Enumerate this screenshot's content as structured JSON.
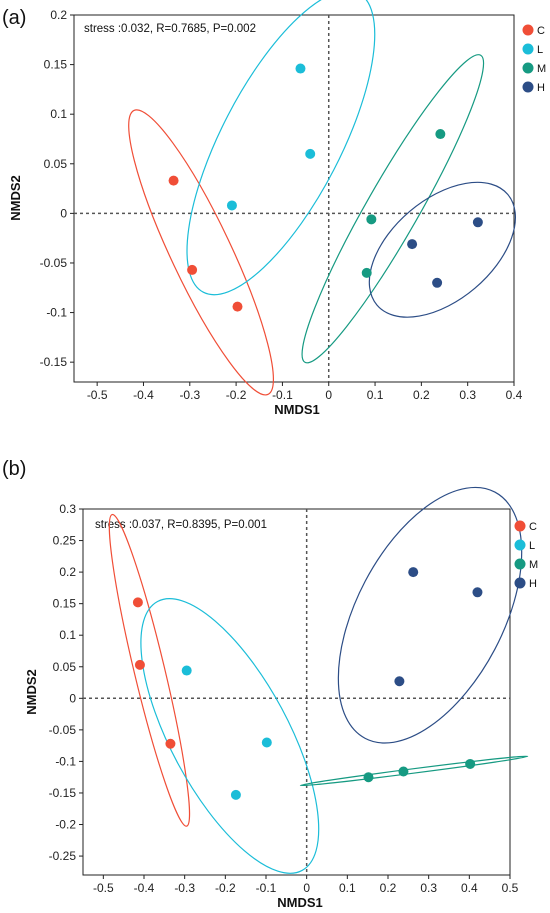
{
  "chart_data": [
    {
      "type": "scatter",
      "panel_label": "(a)",
      "annotation": "stress :0.032, R=0.7685, P=0.002",
      "xlabel": "NMDS1",
      "ylabel": "NMDS2",
      "xlim": [
        -0.55,
        0.4
      ],
      "ylim": [
        -0.17,
        0.2
      ],
      "xticks": [
        -0.5,
        -0.4,
        -0.3,
        -0.2,
        -0.1,
        0,
        0.1,
        0.2,
        0.3,
        0.4
      ],
      "yticks": [
        -0.15,
        -0.1,
        -0.05,
        0,
        0.05,
        0.1,
        0.15,
        0.2
      ],
      "xtick_labels": [
        "-0.5",
        "-0.4",
        "-0.3",
        "-0.2",
        "-0.1",
        "0",
        "0.1",
        "0.2",
        "0.3",
        "0.4"
      ],
      "ytick_labels": [
        "-0.15",
        "-0.1",
        "-0.05",
        "0",
        "0.05",
        "0.1",
        "0.15",
        "0.2"
      ],
      "grid": false,
      "reference_lines": "dashed lines at x=0 and y=0",
      "legend_position": "right",
      "series": [
        {
          "name": "C",
          "color": "#f04e37",
          "points": [
            [
              -0.335,
              0.033
            ],
            [
              -0.295,
              -0.057
            ],
            [
              -0.197,
              -0.094
            ]
          ]
        },
        {
          "name": "L",
          "color": "#1bbdd8",
          "points": [
            [
              -0.061,
              0.146
            ],
            [
              -0.04,
              0.06
            ],
            [
              -0.209,
              0.008
            ]
          ]
        },
        {
          "name": "M",
          "color": "#169a82",
          "points": [
            [
              0.241,
              0.08
            ],
            [
              0.092,
              -0.006
            ],
            [
              0.082,
              -0.06
            ]
          ]
        },
        {
          "name": "H",
          "color": "#2c4d86",
          "points": [
            [
              0.322,
              -0.009
            ],
            [
              0.18,
              -0.031
            ],
            [
              0.234,
              -0.07
            ]
          ]
        }
      ]
    },
    {
      "type": "scatter",
      "panel_label": "(b)",
      "annotation": "stress :0.037, R=0.8395, P=0.001",
      "xlabel": "NMDS1",
      "ylabel": "NMDS2",
      "xlim": [
        -0.55,
        0.5
      ],
      "ylim": [
        -0.28,
        0.3
      ],
      "xticks": [
        -0.5,
        -0.4,
        -0.3,
        -0.2,
        -0.1,
        0,
        0.1,
        0.2,
        0.3,
        0.4,
        0.5
      ],
      "yticks": [
        -0.25,
        -0.2,
        -0.15,
        -0.1,
        -0.05,
        0,
        0.05,
        0.1,
        0.15,
        0.2,
        0.25,
        0.3
      ],
      "xtick_labels": [
        "-0.5",
        "-0.4",
        "-0.3",
        "-0.2",
        "-0.1",
        "0",
        "0.1",
        "0.2",
        "0.3",
        "0.4",
        "0.5"
      ],
      "ytick_labels": [
        "-0.25",
        "-0.2",
        "-0.15",
        "-0.1",
        "-0.05",
        "0",
        "0.05",
        "0.1",
        "0.15",
        "0.2",
        "0.25",
        "0.3"
      ],
      "grid": false,
      "reference_lines": "dashed lines at x=0 and y=0",
      "legend_position": "right",
      "series": [
        {
          "name": "C",
          "color": "#f04e37",
          "points": [
            [
              -0.415,
              0.152
            ],
            [
              -0.41,
              0.053
            ],
            [
              -0.335,
              -0.072
            ]
          ]
        },
        {
          "name": "L",
          "color": "#1bbdd8",
          "points": [
            [
              -0.295,
              0.044
            ],
            [
              -0.098,
              -0.07
            ],
            [
              -0.174,
              -0.153
            ]
          ]
        },
        {
          "name": "M",
          "color": "#169a82",
          "points": [
            [
              0.402,
              -0.104
            ],
            [
              0.238,
              -0.116
            ],
            [
              0.152,
              -0.125
            ]
          ]
        },
        {
          "name": "H",
          "color": "#2c4d86",
          "points": [
            [
              0.262,
              0.2
            ],
            [
              0.42,
              0.168
            ],
            [
              0.228,
              0.027
            ]
          ]
        }
      ]
    }
  ]
}
